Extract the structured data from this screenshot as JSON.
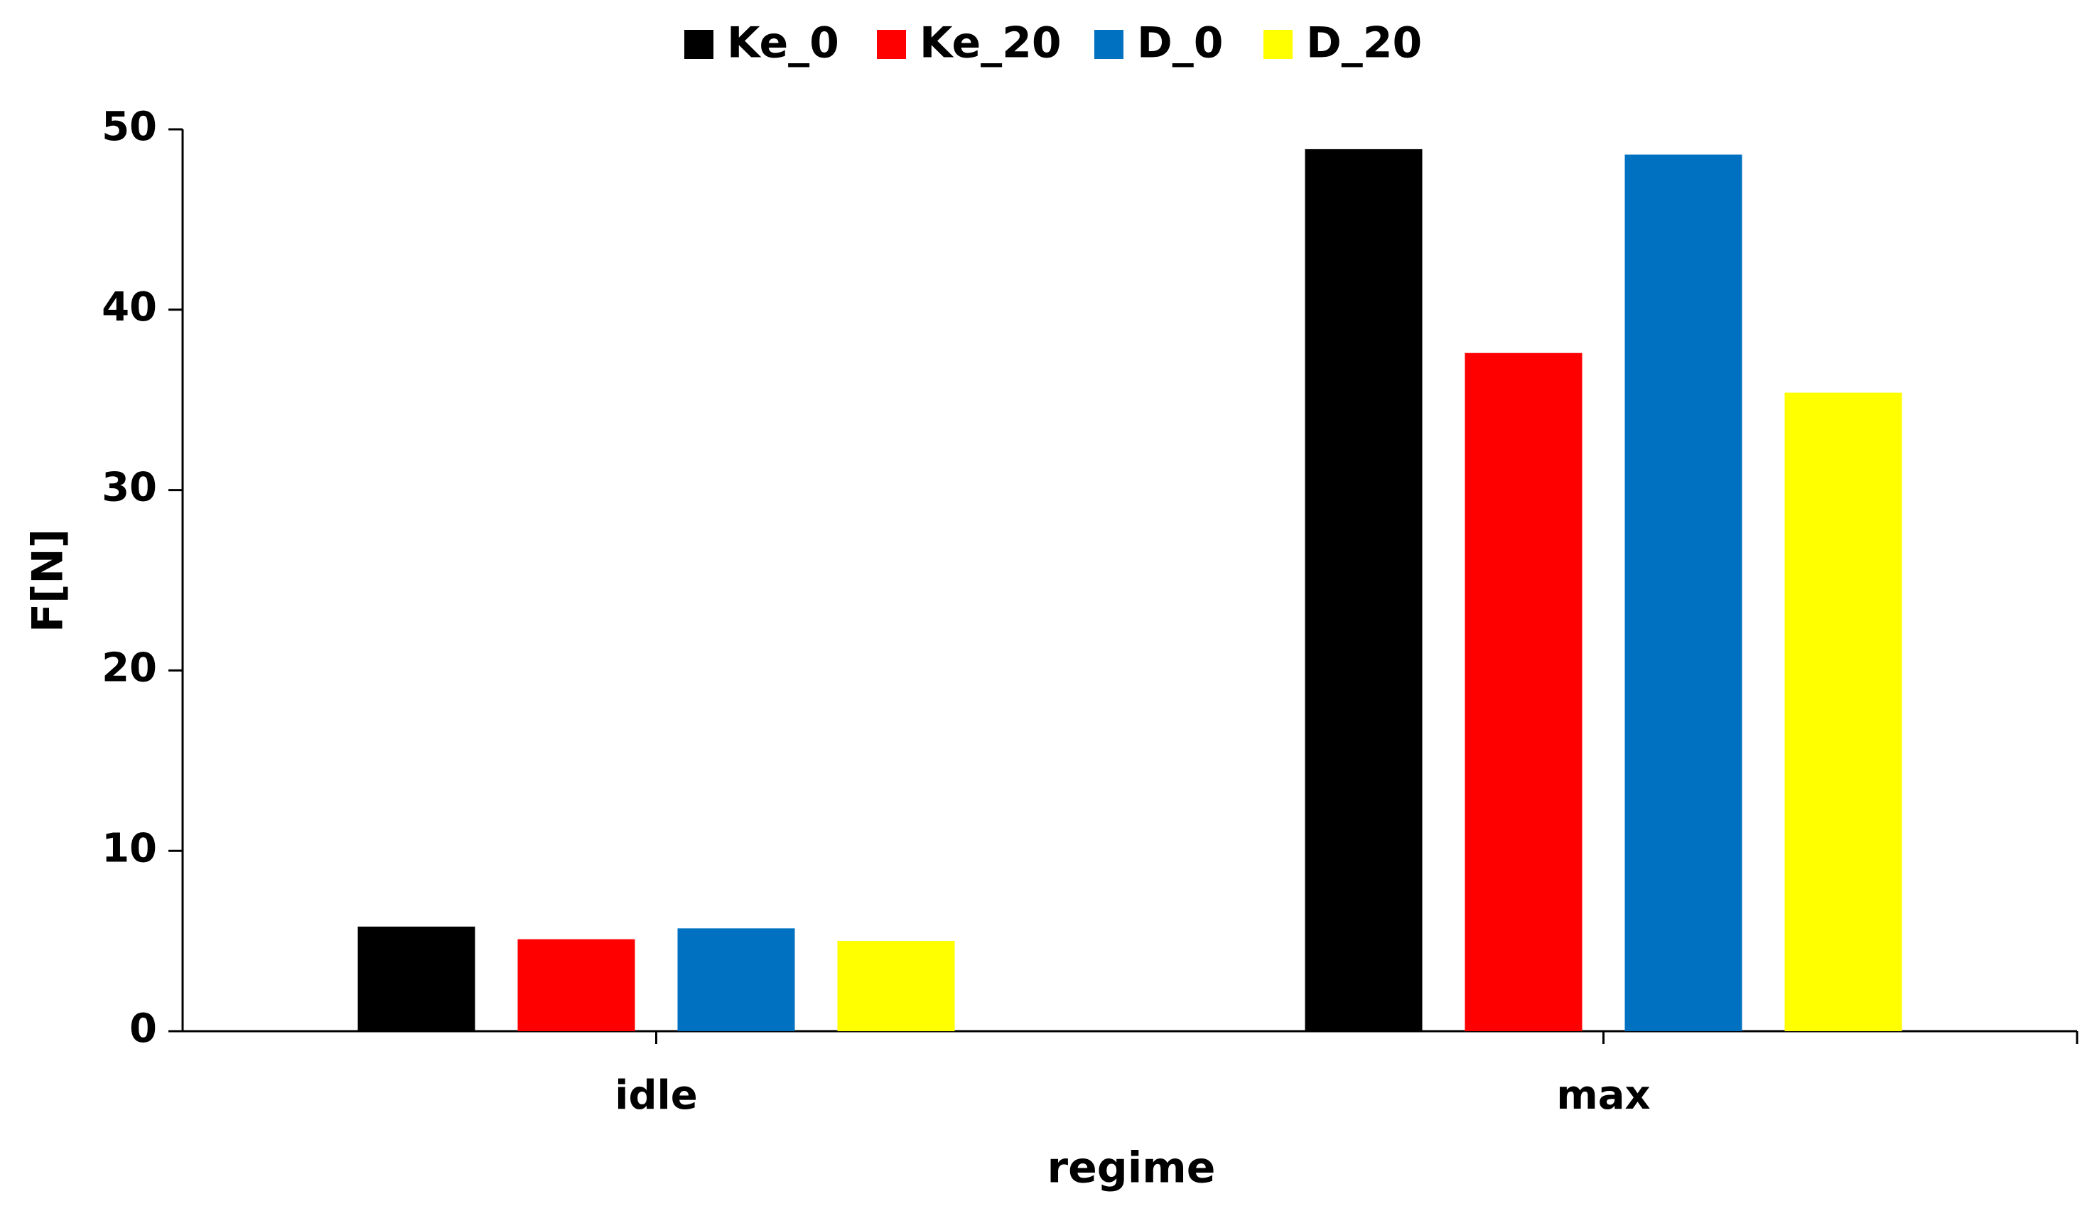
{
  "chart_data": {
    "type": "bar",
    "x_label": "regime",
    "y_label": "F[N]",
    "categories": [
      "idle",
      "max"
    ],
    "series": [
      {
        "name": "Ke_0",
        "color": "#000000",
        "values": [
          5.8,
          48.9
        ]
      },
      {
        "name": "Ke_20",
        "color": "#ff0000",
        "values": [
          5.1,
          37.6
        ]
      },
      {
        "name": "D_0",
        "color": "#0070c0",
        "values": [
          5.7,
          48.6
        ]
      },
      {
        "name": "D_20",
        "color": "#ffff00",
        "values": [
          5.0,
          35.4
        ]
      }
    ],
    "ylim": [
      0,
      50
    ],
    "yticks": [
      0,
      10,
      20,
      30,
      40,
      50
    ],
    "grid": false,
    "legend": "top"
  }
}
